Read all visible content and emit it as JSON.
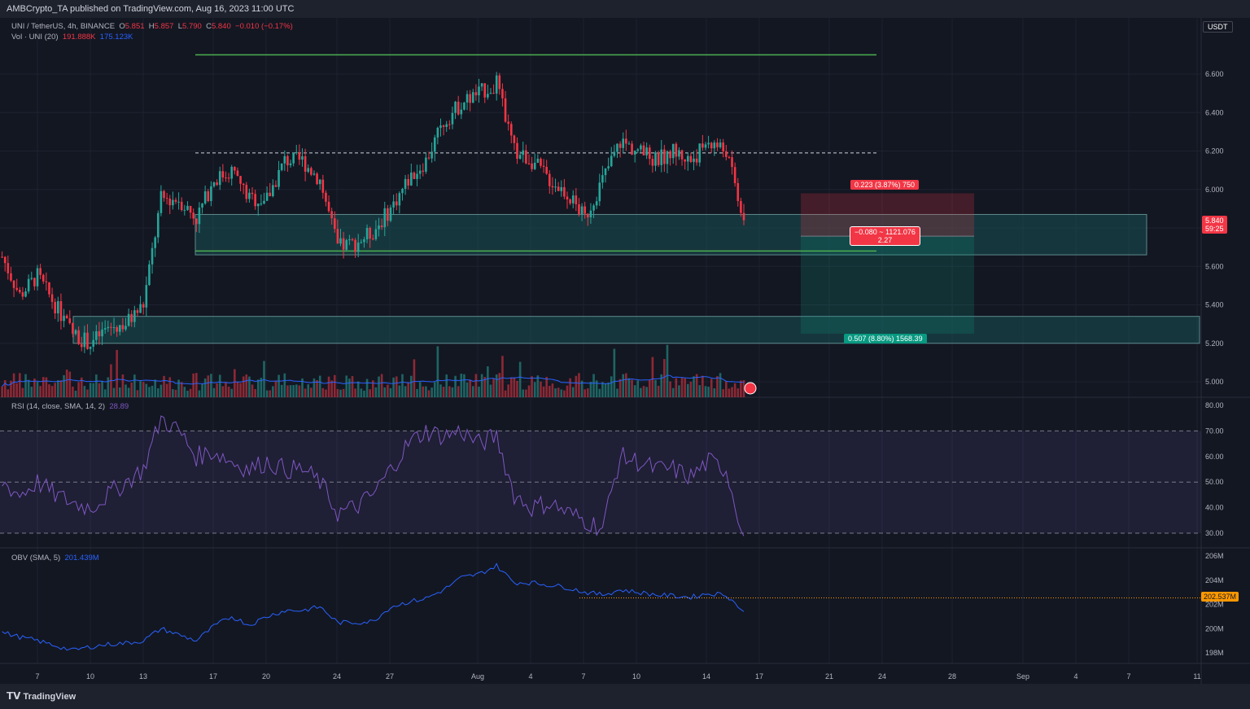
{
  "header": {
    "publish_line": "AMBCrypto_TA published on TradingView.com, Aug 16, 2023 11:00 UTC"
  },
  "legend": {
    "symbol": "UNI / TetherUS, 4h, BINANCE",
    "o_label": "O",
    "o": "5.851",
    "h_label": "H",
    "h": "5.857",
    "l_label": "L",
    "l": "5.790",
    "c_label": "C",
    "c": "5.840",
    "change": "−0.010 (−0.17%)",
    "vol_title": "Vol · UNI (20)",
    "vol_value": "191.888K",
    "vol_ma": "175.123K",
    "rsi_title": "RSI (14, close, SMA, 14, 2)",
    "rsi_value": "28.89",
    "obv_title": "OBV (SMA, 5)",
    "obv_value": "201.439M"
  },
  "currency_badge": "USDT",
  "last_price": {
    "price": "5.840",
    "countdown": "59:25"
  },
  "obv_marker": "202.537M",
  "position_tool": {
    "stop_label": "0.223 (3.87%) 750",
    "entry_label_1": "−0.080 ~ 1121.076",
    "entry_label_2": "2.27",
    "target_label": "0.507 (8.80%) 1568.39"
  },
  "footer": {
    "brand": "TradingView"
  },
  "colors": {
    "up": "#26a69a",
    "down": "#f23645",
    "rsi": "#7e57c2",
    "obv": "#2962ff",
    "level": "#4caf50",
    "zone": "#1b5e60"
  },
  "chart_data": [
    {
      "type": "candlestick",
      "title": "UNI / TetherUS, 4h, BINANCE",
      "x_ticks": [
        "7",
        "10",
        "13",
        "17",
        "20",
        "24",
        "27",
        "Aug",
        "4",
        "7",
        "10",
        "14",
        "17",
        "21",
        "24",
        "28",
        "Sep",
        "4",
        "7",
        "11"
      ],
      "y_ticks": [
        "6.600",
        "6.400",
        "6.200",
        "6.000",
        "5.600",
        "5.400",
        "5.200",
        "5.000"
      ],
      "ylim": [
        4.93,
        6.88
      ],
      "x_start": "Jul 5",
      "x_step": "1 day",
      "daily_close": [
        5.65,
        5.45,
        5.55,
        5.4,
        5.25,
        5.2,
        5.28,
        5.3,
        5.4,
        5.95,
        5.95,
        5.85,
        6.05,
        6.1,
        5.95,
        5.95,
        6.15,
        6.15,
        6.05,
        5.7,
        5.72,
        5.78,
        5.9,
        6.05,
        6.15,
        6.35,
        6.45,
        6.5,
        6.55,
        6.2,
        6.15,
        6.05,
        5.98,
        5.85,
        6.05,
        6.25,
        6.2,
        6.15,
        6.2,
        6.15,
        6.25,
        6.2,
        5.84
      ],
      "levels": {
        "resistance": 6.7,
        "mid_dashed": 6.19,
        "support": 5.68
      },
      "zones": [
        {
          "top": 5.87,
          "bottom": 5.66
        },
        {
          "top": 5.34,
          "bottom": 5.2
        }
      ],
      "position": {
        "stop": 5.98,
        "entry": 5.757,
        "target": 5.25
      }
    },
    {
      "type": "line",
      "title": "RSI (14, close, SMA, 14, 2)",
      "y_ticks": [
        "80.00",
        "70.00",
        "60.00",
        "50.00",
        "40.00",
        "30.00"
      ],
      "ylim": [
        25,
        80
      ],
      "bands": [
        30,
        50,
        70
      ],
      "values": [
        50,
        45,
        50,
        45,
        42,
        40,
        45,
        50,
        55,
        75,
        70,
        60,
        62,
        58,
        55,
        58,
        55,
        55,
        50,
        38,
        40,
        45,
        55,
        65,
        70,
        68,
        70,
        65,
        68,
        45,
        40,
        42,
        38,
        35,
        32,
        60,
        58,
        55,
        55,
        52,
        58,
        55,
        28.89
      ]
    },
    {
      "type": "line",
      "title": "OBV (SMA, 5)",
      "y_ticks": [
        "206M",
        "204M",
        "202M",
        "200M",
        "198M"
      ],
      "ylim": [
        197.5,
        206.5
      ],
      "values": [
        199.7,
        199.3,
        199.0,
        198.6,
        198.2,
        198.5,
        198.7,
        198.8,
        199.0,
        200.0,
        199.5,
        199.0,
        200.2,
        201.0,
        200.3,
        201.0,
        201.5,
        201.5,
        201.8,
        200.5,
        200.5,
        200.6,
        201.8,
        202.2,
        202.5,
        203.2,
        204.2,
        204.5,
        205.2,
        203.8,
        203.8,
        203.6,
        203.4,
        203.0,
        202.8,
        203.2,
        203.0,
        202.8,
        202.7,
        202.6,
        202.9,
        202.8,
        201.4
      ],
      "marker_level": 202.537
    }
  ]
}
